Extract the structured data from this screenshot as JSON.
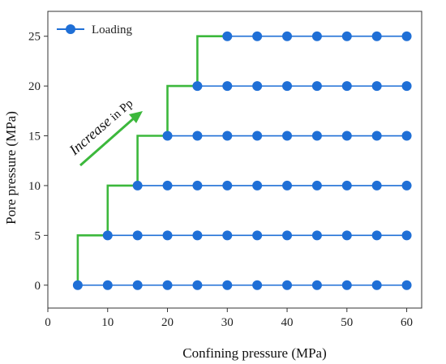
{
  "chart_data": {
    "type": "scatter",
    "xlabel": "Confining pressure (MPa)",
    "ylabel": "Pore pressure (MPa)",
    "xlim": [
      0,
      62.5
    ],
    "ylim": [
      -2.3,
      27.5
    ],
    "xticks": [
      0,
      10,
      20,
      30,
      40,
      50,
      60
    ],
    "yticks": [
      0,
      5,
      10,
      15,
      20,
      25
    ],
    "legend": {
      "position": "top-left",
      "entries": [
        "Loading"
      ]
    },
    "series": [
      {
        "name": "Loading",
        "color": "#1f6fd6",
        "levels": [
          {
            "pore_pressure": 0,
            "x": [
              5,
              10,
              15,
              20,
              25,
              30,
              35,
              40,
              45,
              50,
              55,
              60
            ]
          },
          {
            "pore_pressure": 5,
            "x": [
              10,
              15,
              20,
              25,
              30,
              35,
              40,
              45,
              50,
              55,
              60
            ]
          },
          {
            "pore_pressure": 10,
            "x": [
              15,
              20,
              25,
              30,
              35,
              40,
              45,
              50,
              55,
              60
            ]
          },
          {
            "pore_pressure": 15,
            "x": [
              20,
              25,
              30,
              35,
              40,
              45,
              50,
              55,
              60
            ]
          },
          {
            "pore_pressure": 20,
            "x": [
              25,
              30,
              35,
              40,
              45,
              50,
              55,
              60
            ]
          },
          {
            "pore_pressure": 25,
            "x": [
              30,
              35,
              40,
              45,
              50,
              55,
              60
            ]
          }
        ]
      }
    ],
    "loading_path": {
      "color": "#3cb83c",
      "points": [
        [
          5,
          0
        ],
        [
          5,
          5
        ],
        [
          10,
          5
        ],
        [
          10,
          10
        ],
        [
          15,
          10
        ],
        [
          15,
          15
        ],
        [
          20,
          15
        ],
        [
          20,
          20
        ],
        [
          25,
          20
        ],
        [
          25,
          25
        ],
        [
          30,
          25
        ]
      ]
    },
    "annotation": {
      "text_italic": "Increase",
      "text_regular": " in Pp",
      "arrow_color": "#3cb83c"
    }
  }
}
